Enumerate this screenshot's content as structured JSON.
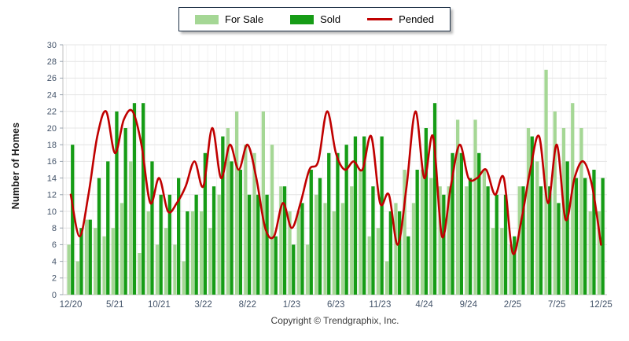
{
  "legend": {
    "items": [
      {
        "label": "For Sale",
        "color": "#a5d795",
        "type": "bar"
      },
      {
        "label": "Sold",
        "color": "#169c16",
        "type": "bar"
      },
      {
        "label": "Pended",
        "color": "#c00000",
        "type": "line"
      }
    ]
  },
  "chart_data": {
    "type": "bar",
    "title": "",
    "xlabel": "",
    "ylabel": "Number of Homes",
    "ylim": [
      0,
      30
    ],
    "ytick_step": 2,
    "grid": true,
    "legend_position": "top-center",
    "xtick_every": 5,
    "xtick_labels": [
      "12/20",
      "5/21",
      "10/21",
      "3/22",
      "8/22",
      "1/23",
      "6/23",
      "11/23",
      "4/24",
      "9/24",
      "2/25",
      "7/25",
      "12/25"
    ],
    "categories": [
      "12/20",
      "1/21",
      "2/21",
      "3/21",
      "4/21",
      "5/21",
      "6/21",
      "7/21",
      "8/21",
      "9/21",
      "10/21",
      "11/21",
      "12/21",
      "1/22",
      "2/22",
      "3/22",
      "4/22",
      "5/22",
      "6/22",
      "7/22",
      "8/22",
      "9/22",
      "10/22",
      "11/22",
      "12/22",
      "1/23",
      "2/23",
      "3/23",
      "4/23",
      "5/23",
      "6/23",
      "7/23",
      "8/23",
      "9/23",
      "10/23",
      "11/23",
      "12/23",
      "1/24",
      "2/24",
      "3/24",
      "4/24",
      "5/24",
      "6/24",
      "7/24",
      "8/24",
      "9/24",
      "10/24",
      "11/24",
      "12/24",
      "1/25",
      "2/25",
      "3/25",
      "4/25",
      "5/25",
      "6/25",
      "7/25",
      "8/25",
      "9/25",
      "10/25",
      "11/25",
      "12/25"
    ],
    "series": [
      {
        "name": "For Sale",
        "type": "bar",
        "color": "#a5d795",
        "values": [
          6,
          4,
          9,
          8,
          7,
          8,
          11,
          16,
          5,
          10,
          6,
          8,
          6,
          4,
          10,
          10,
          8,
          12,
          20,
          22,
          18,
          17,
          22,
          18,
          13,
          10,
          10,
          6,
          12,
          11,
          10,
          11,
          13,
          15,
          7,
          8,
          4,
          11,
          15,
          11,
          15,
          14,
          13,
          13,
          21,
          13,
          21,
          15,
          8,
          8,
          6,
          13,
          20,
          16,
          27,
          22,
          20,
          23,
          20,
          10,
          10
        ]
      },
      {
        "name": "Sold",
        "type": "bar",
        "color": "#169c16",
        "values": [
          18,
          8,
          9,
          14,
          16,
          22,
          20,
          23,
          23,
          16,
          12,
          12,
          14,
          10,
          12,
          17,
          13,
          19,
          16,
          15,
          12,
          12,
          12,
          7,
          13,
          6,
          11,
          15,
          14,
          17,
          17,
          18,
          19,
          19,
          13,
          19,
          10,
          10,
          7,
          15,
          20,
          23,
          12,
          17,
          17,
          14,
          17,
          13,
          12,
          12,
          7,
          13,
          19,
          13,
          13,
          11,
          16,
          14,
          14,
          15,
          14
        ]
      },
      {
        "name": "Pended",
        "type": "line",
        "color": "#c00000",
        "values": [
          12,
          7,
          12,
          19,
          22,
          17,
          21,
          22,
          18,
          11,
          14,
          10,
          11,
          13,
          16,
          13,
          20,
          14,
          18,
          15,
          18,
          14,
          8,
          7,
          11,
          8,
          11,
          15,
          16,
          22,
          17,
          15,
          16,
          15,
          19,
          11,
          12,
          6,
          13,
          22,
          14,
          19,
          7,
          13,
          18,
          14,
          14,
          15,
          12,
          14,
          5,
          9,
          15,
          19,
          11,
          18,
          9,
          14,
          16,
          13,
          6
        ]
      }
    ]
  },
  "footer": {
    "copyright": "Copyright © Trendgraphix, Inc."
  }
}
